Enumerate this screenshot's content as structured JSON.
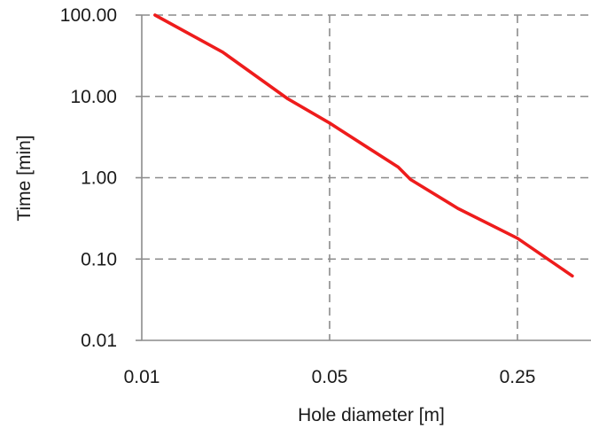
{
  "chart_data": {
    "type": "line",
    "xlabel": "Hole diameter [m]",
    "ylabel": "Time [min]",
    "x_scale": "log",
    "y_scale": "log",
    "xlim": [
      0.01,
      0.4
    ],
    "ylim": [
      0.01,
      100
    ],
    "x_ticks": [
      {
        "value": 0.01,
        "label": "0.01"
      },
      {
        "value": 0.05,
        "label": "0.05"
      },
      {
        "value": 0.25,
        "label": "0.25"
      }
    ],
    "y_ticks": [
      {
        "value": 0.01,
        "label": "0.01"
      },
      {
        "value": 0.1,
        "label": "0.10"
      },
      {
        "value": 1,
        "label": "1.00"
      },
      {
        "value": 10,
        "label": "10.00"
      },
      {
        "value": 100,
        "label": "100.00"
      }
    ],
    "grid": true,
    "series": [
      {
        "color": "#ee1c1c",
        "x": [
          0.0112,
          0.02,
          0.035,
          0.05,
          0.07,
          0.09,
          0.1,
          0.15,
          0.25,
          0.4
        ],
        "y": [
          100,
          35,
          9.3,
          4.7,
          2.3,
          1.35,
          0.95,
          0.42,
          0.18,
          0.062
        ]
      }
    ]
  }
}
